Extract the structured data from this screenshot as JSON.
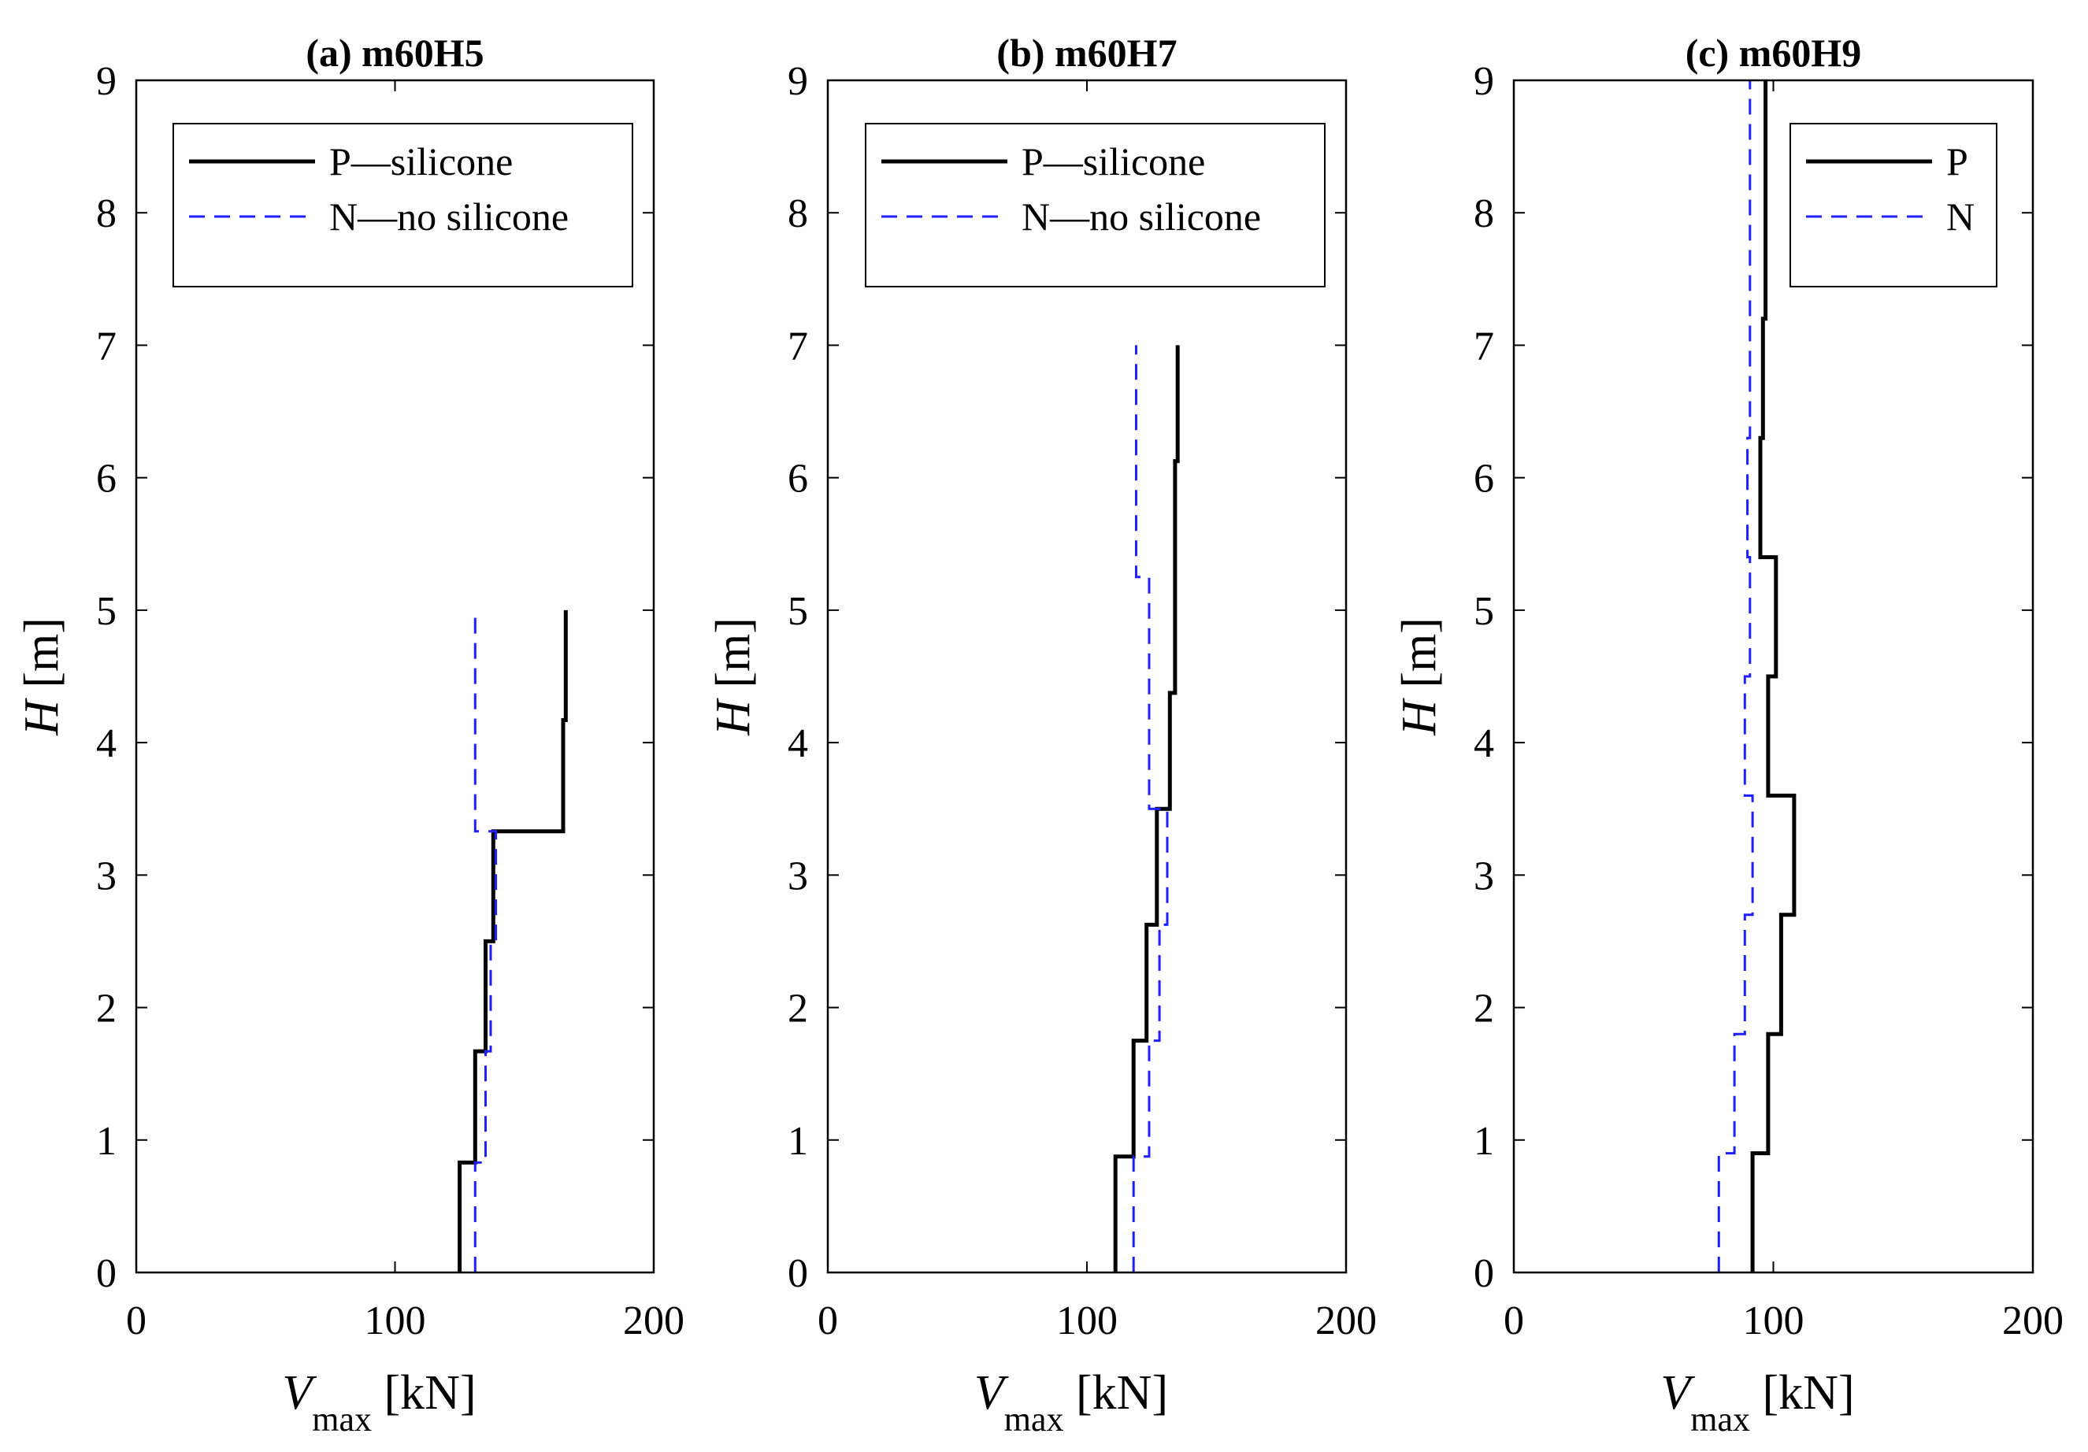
{
  "chart_data": [
    {
      "type": "line",
      "title": "(a) m60H5",
      "xlabel": "V",
      "xlabel_sub": "max",
      "xlabel_unit": "[kN]",
      "ylabel": "H",
      "ylabel_unit": "[m]",
      "xlim": [
        0,
        200
      ],
      "ylim": [
        0,
        9
      ],
      "xticks": [
        "0",
        "100",
        "200"
      ],
      "yticks": [
        "0",
        "1",
        "2",
        "3",
        "4",
        "5",
        "6",
        "7",
        "8",
        "9"
      ],
      "legend_position": "top-right",
      "series": [
        {
          "name": "P—silicone",
          "style": "solid",
          "color": "#000000",
          "x": [
            125,
            125,
            131,
            131,
            135,
            135,
            138,
            138,
            165,
            165,
            166,
            166
          ],
          "y": [
            0,
            0.83,
            0.83,
            1.67,
            1.67,
            2.5,
            2.5,
            3.33,
            3.33,
            4.17,
            4.17,
            5
          ]
        },
        {
          "name": "N—no silicone",
          "style": "dashed",
          "color": "#1f1fff",
          "x": [
            131,
            131,
            135,
            135,
            137,
            137,
            139,
            139,
            131,
            131
          ],
          "y": [
            0,
            0.83,
            0.83,
            1.67,
            1.67,
            2.5,
            2.5,
            3.33,
            3.33,
            5
          ]
        }
      ]
    },
    {
      "type": "line",
      "title": "(b) m60H7",
      "xlabel": "V",
      "xlabel_sub": "max",
      "xlabel_unit": "[kN]",
      "ylabel": "H",
      "ylabel_unit": "[m]",
      "xlim": [
        0,
        200
      ],
      "ylim": [
        0,
        9
      ],
      "xticks": [
        "0",
        "100",
        "200"
      ],
      "yticks": [
        "0",
        "1",
        "2",
        "3",
        "4",
        "5",
        "6",
        "7",
        "8",
        "9"
      ],
      "legend_position": "top-right",
      "series": [
        {
          "name": "P—silicone",
          "style": "solid",
          "color": "#000000",
          "x": [
            111,
            111,
            118,
            118,
            123,
            123,
            127,
            127,
            132,
            132,
            134,
            134,
            135,
            135
          ],
          "y": [
            0,
            0.875,
            0.875,
            1.75,
            1.75,
            2.625,
            2.625,
            3.5,
            3.5,
            4.375,
            4.375,
            6.125,
            6.125,
            7
          ]
        },
        {
          "name": "N—no silicone",
          "style": "dashed",
          "color": "#1f1fff",
          "x": [
            118,
            118,
            124,
            124,
            128,
            128,
            131,
            131,
            124,
            124,
            119,
            119
          ],
          "y": [
            0,
            0.875,
            0.875,
            1.75,
            1.75,
            2.625,
            2.625,
            3.5,
            3.5,
            5.25,
            5.25,
            7
          ]
        }
      ]
    },
    {
      "type": "line",
      "title": "(c) m60H9",
      "xlabel": "V",
      "xlabel_sub": "max",
      "xlabel_unit": "[kN]",
      "ylabel": "H",
      "ylabel_unit": "[m]",
      "xlim": [
        0,
        200
      ],
      "ylim": [
        0,
        9
      ],
      "xticks": [
        "0",
        "100",
        "200"
      ],
      "yticks": [
        "0",
        "1",
        "2",
        "3",
        "4",
        "5",
        "6",
        "7",
        "8",
        "9"
      ],
      "legend_position": "top-right",
      "series": [
        {
          "name": "P",
          "style": "solid",
          "color": "#000000",
          "x": [
            92,
            92,
            98,
            98,
            103,
            103,
            108,
            108,
            98,
            98,
            101,
            101,
            95,
            95,
            96,
            96,
            97,
            97
          ],
          "y": [
            0,
            0.9,
            0.9,
            1.8,
            1.8,
            2.7,
            2.7,
            3.6,
            3.6,
            4.5,
            4.5,
            5.4,
            5.4,
            6.3,
            6.3,
            7.2,
            7.2,
            9
          ]
        },
        {
          "name": "N",
          "style": "dashed",
          "color": "#1f1fff",
          "x": [
            79,
            79,
            85,
            85,
            89,
            89,
            92,
            92,
            89,
            89,
            91,
            91,
            90,
            90,
            91,
            91
          ],
          "y": [
            0,
            0.9,
            0.9,
            1.8,
            1.8,
            2.7,
            2.7,
            3.6,
            3.6,
            4.5,
            4.5,
            5.4,
            5.4,
            6.3,
            6.3,
            9
          ]
        }
      ]
    }
  ]
}
